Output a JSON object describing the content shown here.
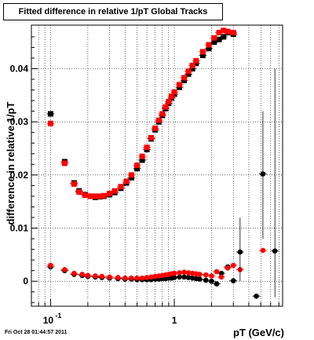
{
  "header": {
    "timestamp": "Fri Oct 28 01:44:57 2011"
  },
  "chart_data": {
    "type": "scatter",
    "title": "Fitted difference in relative 1/pT  Global Tracks",
    "xlabel": "pT (GeV/c)",
    "ylabel": "difference in relative 1/pT",
    "xscale": "log",
    "xlim": [
      0.07,
      7.5
    ],
    "ylim": [
      -0.0047,
      0.0482
    ],
    "grid": true,
    "x_tick_labels": [
      "10",
      "-1",
      "1"
    ],
    "y_ticks": [
      0,
      0.01,
      0.02,
      0.03,
      0.04
    ],
    "y_tick_labels": [
      "0",
      "0.01",
      "0.02",
      "0.03",
      "0.04"
    ],
    "colors": {
      "black_series": "#000000",
      "red_series": "#ff0000",
      "axis": "#000000",
      "grid": "#000000"
    },
    "series": [
      {
        "marker": "square",
        "color": "#000000",
        "points": [
          [
            0.1,
            0.0315
          ],
          [
            0.13,
            0.0225
          ],
          [
            0.155,
            0.0185
          ],
          [
            0.17,
            0.017
          ],
          [
            0.19,
            0.0163
          ],
          [
            0.21,
            0.016
          ],
          [
            0.23,
            0.0158
          ],
          [
            0.25,
            0.0159
          ],
          [
            0.27,
            0.016
          ],
          [
            0.3,
            0.0163
          ],
          [
            0.33,
            0.0167
          ],
          [
            0.37,
            0.0175
          ],
          [
            0.41,
            0.0185
          ],
          [
            0.45,
            0.0195
          ],
          [
            0.5,
            0.0212
          ],
          [
            0.55,
            0.0228
          ],
          [
            0.6,
            0.0248
          ],
          [
            0.65,
            0.0268
          ],
          [
            0.7,
            0.0285
          ],
          [
            0.75,
            0.03
          ],
          [
            0.8,
            0.0312
          ],
          [
            0.85,
            0.0325
          ],
          [
            0.9,
            0.0335
          ],
          [
            0.95,
            0.0345
          ],
          [
            1.0,
            0.0352
          ],
          [
            1.1,
            0.0365
          ],
          [
            1.2,
            0.0378
          ],
          [
            1.3,
            0.039
          ],
          [
            1.4,
            0.04
          ],
          [
            1.5,
            0.041
          ],
          [
            1.7,
            0.0425
          ],
          [
            1.9,
            0.0438
          ],
          [
            2.1,
            0.045
          ],
          [
            2.3,
            0.0455
          ],
          [
            2.5,
            0.046
          ],
          [
            2.7,
            0.0468
          ],
          [
            3.0,
            0.0465
          ]
        ]
      },
      {
        "marker": "square",
        "color": "#ff0000",
        "points": [
          [
            0.1,
            0.0297
          ],
          [
            0.13,
            0.0222
          ],
          [
            0.155,
            0.0183
          ],
          [
            0.17,
            0.0168
          ],
          [
            0.19,
            0.0162
          ],
          [
            0.21,
            0.016
          ],
          [
            0.23,
            0.016
          ],
          [
            0.25,
            0.016
          ],
          [
            0.27,
            0.0161
          ],
          [
            0.3,
            0.0165
          ],
          [
            0.33,
            0.017
          ],
          [
            0.37,
            0.0178
          ],
          [
            0.41,
            0.0188
          ],
          [
            0.45,
            0.02
          ],
          [
            0.5,
            0.0218
          ],
          [
            0.55,
            0.0235
          ],
          [
            0.6,
            0.0252
          ],
          [
            0.65,
            0.027
          ],
          [
            0.7,
            0.0288
          ],
          [
            0.75,
            0.0303
          ],
          [
            0.8,
            0.0315
          ],
          [
            0.85,
            0.0328
          ],
          [
            0.9,
            0.0338
          ],
          [
            0.95,
            0.0348
          ],
          [
            1.0,
            0.0356
          ],
          [
            1.1,
            0.037
          ],
          [
            1.2,
            0.0383
          ],
          [
            1.3,
            0.0395
          ],
          [
            1.4,
            0.0406
          ],
          [
            1.5,
            0.0415
          ],
          [
            1.7,
            0.0432
          ],
          [
            1.9,
            0.0445
          ],
          [
            2.1,
            0.0458
          ],
          [
            2.3,
            0.0468
          ],
          [
            2.5,
            0.0472
          ],
          [
            2.7,
            0.047
          ],
          [
            3.0,
            0.0468
          ]
        ]
      },
      {
        "marker": "circle",
        "color": "#000000",
        "points": [
          [
            0.1,
            0.0027
          ],
          [
            0.13,
            0.002
          ],
          [
            0.155,
            0.0013
          ],
          [
            0.18,
            0.0011
          ],
          [
            0.2,
            0.0009
          ],
          [
            0.23,
            0.0008
          ],
          [
            0.26,
            0.0007
          ],
          [
            0.3,
            0.0006
          ],
          [
            0.35,
            0.0005
          ],
          [
            0.4,
            0.0004
          ],
          [
            0.45,
            0.0004
          ],
          [
            0.5,
            0.0003
          ],
          [
            0.55,
            0.0003
          ],
          [
            0.6,
            0.0003
          ],
          [
            0.65,
            0.0003
          ],
          [
            0.7,
            0.0004
          ],
          [
            0.75,
            0.0004
          ],
          [
            0.8,
            0.0005
          ],
          [
            0.85,
            0.0005
          ],
          [
            0.9,
            0.0006
          ],
          [
            0.95,
            0.0006
          ],
          [
            1.0,
            0.0007
          ],
          [
            1.1,
            0.0008
          ],
          [
            1.2,
            0.0008
          ],
          [
            1.3,
            0.0007
          ],
          [
            1.4,
            0.0006
          ],
          [
            1.5,
            0.0005
          ],
          [
            1.6,
            0.0004
          ],
          [
            1.8,
            0.0002
          ],
          [
            2.0,
            0.0
          ],
          [
            2.2,
            -0.0005
          ],
          [
            2.4,
            0.0015
          ],
          [
            2.7,
            0.0027
          ],
          [
            3.0,
            0.0001
          ],
          [
            3.4,
            0.0055
          ],
          [
            4.6,
            -0.0028
          ],
          [
            5.2,
            0.0202
          ],
          [
            6.5,
            0.0057
          ]
        ]
      },
      {
        "marker": "circle",
        "color": "#ff0000",
        "points": [
          [
            0.1,
            0.003
          ],
          [
            0.13,
            0.0022
          ],
          [
            0.155,
            0.0015
          ],
          [
            0.18,
            0.0013
          ],
          [
            0.2,
            0.0011
          ],
          [
            0.23,
            0.001
          ],
          [
            0.26,
            0.0009
          ],
          [
            0.3,
            0.0008
          ],
          [
            0.35,
            0.0007
          ],
          [
            0.4,
            0.0006
          ],
          [
            0.45,
            0.0006
          ],
          [
            0.5,
            0.0006
          ],
          [
            0.55,
            0.0006
          ],
          [
            0.6,
            0.0007
          ],
          [
            0.65,
            0.0008
          ],
          [
            0.7,
            0.0009
          ],
          [
            0.75,
            0.001
          ],
          [
            0.8,
            0.0011
          ],
          [
            0.85,
            0.0012
          ],
          [
            0.9,
            0.0013
          ],
          [
            0.95,
            0.0014
          ],
          [
            1.0,
            0.0015
          ],
          [
            1.1,
            0.0016
          ],
          [
            1.2,
            0.0017
          ],
          [
            1.3,
            0.0016
          ],
          [
            1.4,
            0.0015
          ],
          [
            1.5,
            0.0014
          ],
          [
            1.6,
            0.0013
          ],
          [
            1.8,
            0.0012
          ],
          [
            2.0,
            0.001
          ],
          [
            2.2,
            0.0018
          ],
          [
            2.4,
            0.0008
          ],
          [
            2.7,
            0.0025
          ],
          [
            3.0,
            0.003
          ],
          [
            3.4,
            0.0022
          ],
          [
            5.2,
            0.0058
          ]
        ]
      }
    ]
  }
}
